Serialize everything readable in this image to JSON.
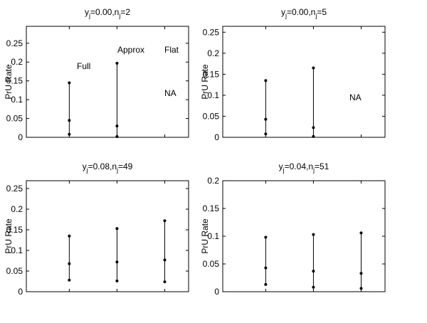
{
  "chart_data": [
    {
      "type": "errorbar",
      "title": [
        "y",
        "j",
        "=0.00,n",
        "j",
        "=2"
      ],
      "y_label": "PrU Rate",
      "categories": [
        null,
        null,
        null
      ],
      "lower": [
        0.008,
        0.002,
        null
      ],
      "values": [
        0.045,
        0.03,
        null
      ],
      "upper": [
        0.145,
        0.197,
        null
      ],
      "ylim": [
        0,
        0.295
      ],
      "yticks": [
        0,
        0.05,
        0.1,
        0.15,
        0.2,
        0.25
      ],
      "annotations": [
        "Full",
        "Approx",
        "Flat",
        "NA"
      ],
      "color": "#000000"
    },
    {
      "type": "errorbar",
      "title": [
        "y",
        "j",
        "=0.00,n",
        "j",
        "=5"
      ],
      "y_label": "PrU Rate",
      "categories": [
        null,
        null,
        null
      ],
      "lower": [
        0.008,
        0.002,
        null
      ],
      "values": [
        0.043,
        0.023,
        null
      ],
      "upper": [
        0.135,
        0.165,
        null
      ],
      "ylim": [
        0,
        0.264
      ],
      "yticks": [
        0,
        0.05,
        0.1,
        0.15,
        0.2,
        0.25
      ],
      "annotations": [
        "NA"
      ],
      "color": "#000000"
    },
    {
      "type": "errorbar",
      "title": [
        "y",
        "j",
        "=0.08,n",
        "j",
        "=49"
      ],
      "y_label": "PrU Rate",
      "categories": [
        null,
        null,
        null
      ],
      "lower": [
        0.028,
        0.026,
        0.024
      ],
      "values": [
        0.068,
        0.072,
        0.077
      ],
      "upper": [
        0.135,
        0.153,
        0.172
      ],
      "ylim": [
        0,
        0.269
      ],
      "yticks": [
        0,
        0.05,
        0.1,
        0.15,
        0.2,
        0.25
      ],
      "color": "#000000"
    },
    {
      "type": "errorbar",
      "title": [
        "y",
        "j",
        "=0.04,n",
        "j",
        "=51"
      ],
      "y_label": "PrU Rate",
      "categories": [
        null,
        null,
        null
      ],
      "lower": [
        0.013,
        0.008,
        0.006
      ],
      "values": [
        0.043,
        0.037,
        0.033
      ],
      "upper": [
        0.098,
        0.103,
        0.106
      ],
      "ylim": [
        0,
        0.2
      ],
      "yticks": [
        0,
        0.05,
        0.1,
        0.15,
        0.2
      ],
      "color": "#000000"
    }
  ]
}
